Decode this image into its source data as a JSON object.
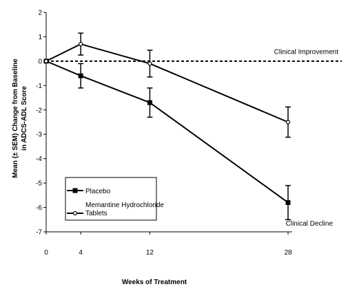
{
  "chart_data": {
    "type": "line",
    "title": "",
    "xlabel": "Weeks of Treatment",
    "ylabel_line1": "Mean (± SEM) Change from Baseline",
    "ylabel_line2": "in ADCS-ADL Score",
    "x": [
      0,
      4,
      12,
      28
    ],
    "x_ticks": [
      "0",
      "4",
      "12",
      "28"
    ],
    "y_ticks": [
      "2",
      "1",
      "0",
      "-1",
      "-2",
      "-3",
      "-4",
      "-5",
      "-6",
      "-7"
    ],
    "ylim": [
      -7,
      2
    ],
    "reference_line": {
      "y": 0,
      "style": "dashed"
    },
    "series": [
      {
        "name": "Placebo",
        "marker": "filled-square",
        "values": [
          0,
          -0.6,
          -1.7,
          -5.8
        ],
        "sem": [
          0,
          0.5,
          0.6,
          0.7
        ]
      },
      {
        "name": "Memantine Hydrochloride Tablets",
        "legend_line1": "Memantine Hydrochloride",
        "legend_line2": "Tablets",
        "marker": "open-circle",
        "values": [
          0,
          0.7,
          -0.1,
          -2.5
        ],
        "sem": [
          0,
          0.45,
          0.55,
          0.62
        ]
      }
    ],
    "annotations": [
      {
        "text": "Clinical Improvement",
        "y": 0.3,
        "x_align": "right"
      },
      {
        "text": "Clinical Decline",
        "y": -6.75,
        "x_align": "right"
      }
    ],
    "legend_position": "bottom-left",
    "grid": false
  }
}
